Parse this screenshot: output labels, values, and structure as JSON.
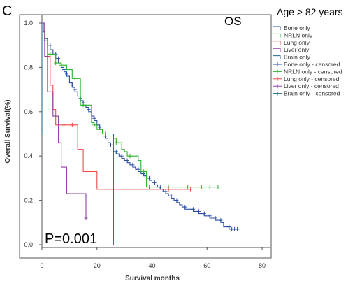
{
  "panel_letter": "C",
  "chart_data": {
    "type": "line",
    "title": "OS",
    "subtitle": "Age > 82 years",
    "annotation": "P=0.001",
    "xlabel": "Survival months",
    "ylabel": "Overall Survival(%)",
    "xlim": [
      0,
      80
    ],
    "ylim": [
      0,
      1.0
    ],
    "xticks": [
      "0",
      "20",
      "40",
      "60",
      "80"
    ],
    "yticks": [
      "0.0",
      "0.2",
      "0.4",
      "0.6",
      "0.8",
      "1.0"
    ],
    "legend_position": "right",
    "legend": [
      {
        "label": "Bone only",
        "color": "#2b4ea2",
        "marker": "line"
      },
      {
        "label": "NRLN only",
        "color": "#2bb52b",
        "marker": "line"
      },
      {
        "label": "Lung only",
        "color": "#ef4a4a",
        "marker": "line"
      },
      {
        "label": "Liver only",
        "color": "#8e3ea3",
        "marker": "line"
      },
      {
        "label": "Brain only",
        "color": "#236a8c",
        "marker": "line"
      },
      {
        "label": "Bone only - censored",
        "color": "#2b4ea2",
        "marker": "plus"
      },
      {
        "label": "NRLN only - censored",
        "color": "#2bb52b",
        "marker": "plus"
      },
      {
        "label": "Lung only - censored",
        "color": "#ef4a4a",
        "marker": "plus"
      },
      {
        "label": "Liver only - censored",
        "color": "#8e3ea3",
        "marker": "plus"
      },
      {
        "label": "Brain only - censored",
        "color": "#236a8c",
        "marker": "plus"
      }
    ],
    "series": [
      {
        "name": "Bone only",
        "color": "#2b4ea2",
        "points": [
          [
            0,
            1.0
          ],
          [
            0.5,
            0.96
          ],
          [
            1,
            0.93
          ],
          [
            2,
            0.9
          ],
          [
            3,
            0.88
          ],
          [
            4,
            0.86
          ],
          [
            5,
            0.84
          ],
          [
            6,
            0.82
          ],
          [
            7,
            0.8
          ],
          [
            8,
            0.78
          ],
          [
            9,
            0.76
          ],
          [
            10,
            0.73
          ],
          [
            11,
            0.71
          ],
          [
            12,
            0.69
          ],
          [
            13,
            0.67
          ],
          [
            14,
            0.65
          ],
          [
            15,
            0.63
          ],
          [
            16,
            0.62
          ],
          [
            17,
            0.6
          ],
          [
            18,
            0.58
          ],
          [
            19,
            0.56
          ],
          [
            20,
            0.54
          ],
          [
            21,
            0.52
          ],
          [
            22,
            0.5
          ],
          [
            23,
            0.48
          ],
          [
            24,
            0.46
          ],
          [
            25,
            0.44
          ],
          [
            26,
            0.42
          ],
          [
            27,
            0.41
          ],
          [
            28,
            0.4
          ],
          [
            29,
            0.39
          ],
          [
            30,
            0.38
          ],
          [
            31,
            0.37
          ],
          [
            32,
            0.36
          ],
          [
            33,
            0.35
          ],
          [
            34,
            0.34
          ],
          [
            35,
            0.33
          ],
          [
            36,
            0.32
          ],
          [
            37,
            0.31
          ],
          [
            38,
            0.3
          ],
          [
            39,
            0.29
          ],
          [
            40,
            0.28
          ],
          [
            41,
            0.27
          ],
          [
            42,
            0.26
          ],
          [
            43,
            0.25
          ],
          [
            44,
            0.24
          ],
          [
            45,
            0.23
          ],
          [
            46,
            0.22
          ],
          [
            47,
            0.21
          ],
          [
            48,
            0.2
          ],
          [
            49,
            0.19
          ],
          [
            50,
            0.18
          ],
          [
            51,
            0.17
          ],
          [
            52,
            0.16
          ],
          [
            55,
            0.15
          ],
          [
            57,
            0.14
          ],
          [
            59,
            0.13
          ],
          [
            61,
            0.12
          ],
          [
            63,
            0.11
          ],
          [
            65,
            0.1
          ],
          [
            66,
            0.08
          ],
          [
            68,
            0.07
          ],
          [
            71,
            0.07
          ]
        ],
        "censored": [
          [
            3,
            0.9
          ],
          [
            5,
            0.86
          ],
          [
            6,
            0.84
          ],
          [
            8,
            0.79
          ],
          [
            9,
            0.77
          ],
          [
            11,
            0.72
          ],
          [
            12,
            0.7
          ],
          [
            14,
            0.66
          ],
          [
            15,
            0.64
          ],
          [
            17,
            0.61
          ],
          [
            19,
            0.57
          ],
          [
            21,
            0.53
          ],
          [
            23,
            0.49
          ],
          [
            25,
            0.45
          ],
          [
            27,
            0.42
          ],
          [
            29,
            0.4
          ],
          [
            31,
            0.38
          ],
          [
            33,
            0.36
          ],
          [
            35,
            0.34
          ],
          [
            37,
            0.32
          ],
          [
            39,
            0.3
          ],
          [
            41,
            0.28
          ],
          [
            43,
            0.26
          ],
          [
            45,
            0.24
          ],
          [
            47,
            0.22
          ],
          [
            49,
            0.2
          ],
          [
            52,
            0.17
          ],
          [
            55,
            0.16
          ],
          [
            57,
            0.15
          ],
          [
            59,
            0.14
          ],
          [
            61,
            0.13
          ],
          [
            63,
            0.12
          ],
          [
            65,
            0.11
          ],
          [
            68,
            0.08
          ],
          [
            69,
            0.07
          ],
          [
            70,
            0.07
          ],
          [
            71,
            0.07
          ]
        ]
      },
      {
        "name": "NRLN only",
        "color": "#2bb52b",
        "points": [
          [
            0,
            1.0
          ],
          [
            1,
            0.92
          ],
          [
            2,
            0.86
          ],
          [
            5,
            0.82
          ],
          [
            7,
            0.81
          ],
          [
            9,
            0.79
          ],
          [
            11,
            0.75
          ],
          [
            14,
            0.63
          ],
          [
            18,
            0.55
          ],
          [
            19,
            0.54
          ],
          [
            20,
            0.52
          ],
          [
            22,
            0.5
          ],
          [
            26,
            0.48
          ],
          [
            27,
            0.46
          ],
          [
            29,
            0.43
          ],
          [
            30,
            0.42
          ],
          [
            31,
            0.4
          ],
          [
            35,
            0.38
          ],
          [
            36,
            0.33
          ],
          [
            38,
            0.33
          ],
          [
            38,
            0.26
          ],
          [
            64,
            0.26
          ]
        ],
        "censored": [
          [
            1,
            0.92
          ],
          [
            3,
            0.86
          ],
          [
            5,
            0.82
          ],
          [
            7,
            0.81
          ],
          [
            12,
            0.75
          ],
          [
            15,
            0.63
          ],
          [
            19,
            0.54
          ],
          [
            23,
            0.5
          ],
          [
            27,
            0.46
          ],
          [
            32,
            0.4
          ],
          [
            37,
            0.33
          ],
          [
            39,
            0.26
          ],
          [
            46,
            0.26
          ],
          [
            53,
            0.26
          ],
          [
            58,
            0.26
          ],
          [
            61,
            0.26
          ],
          [
            64,
            0.26
          ]
        ]
      },
      {
        "name": "Lung only",
        "color": "#ef4a4a",
        "points": [
          [
            0,
            1.0
          ],
          [
            1,
            0.92
          ],
          [
            2,
            0.85
          ],
          [
            3,
            0.72
          ],
          [
            4,
            0.61
          ],
          [
            5,
            0.54
          ],
          [
            13,
            0.54
          ],
          [
            13,
            0.43
          ],
          [
            15,
            0.43
          ],
          [
            15,
            0.33
          ],
          [
            20,
            0.33
          ],
          [
            20,
            0.25
          ],
          [
            54,
            0.25
          ]
        ],
        "censored": [
          [
            8,
            0.54
          ],
          [
            11,
            0.54
          ],
          [
            46,
            0.25
          ],
          [
            54,
            0.25
          ]
        ]
      },
      {
        "name": "Liver only",
        "color": "#8e3ea3",
        "points": [
          [
            0,
            1.0
          ],
          [
            1,
            0.85
          ],
          [
            2,
            0.69
          ],
          [
            4,
            0.69
          ],
          [
            4,
            0.58
          ],
          [
            6,
            0.58
          ],
          [
            6,
            0.46
          ],
          [
            7,
            0.46
          ],
          [
            7,
            0.35
          ],
          [
            9,
            0.35
          ],
          [
            9,
            0.23
          ],
          [
            16,
            0.23
          ],
          [
            16,
            0.12
          ]
        ],
        "censored": [
          [
            16,
            0.12
          ]
        ]
      },
      {
        "name": "Brain only",
        "color": "#236a8c",
        "points": [
          [
            0,
            1.0
          ],
          [
            0,
            0.5
          ],
          [
            26,
            0.5
          ],
          [
            26,
            0.0
          ]
        ],
        "censored": []
      }
    ]
  }
}
